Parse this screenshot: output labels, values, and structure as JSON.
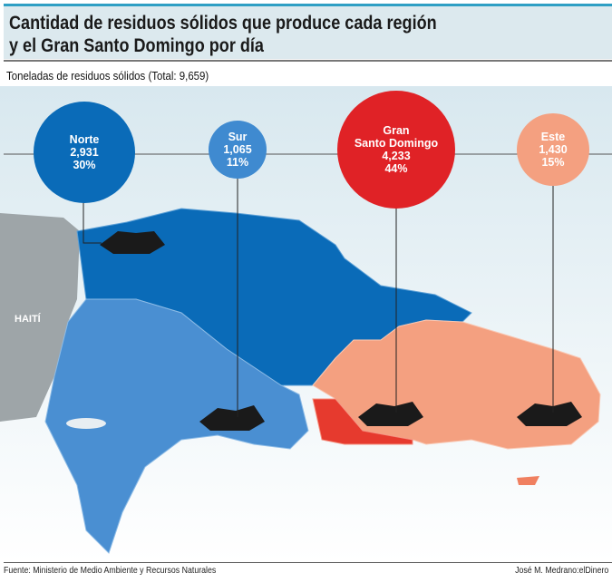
{
  "header": {
    "title": "Cantidad de residuos sólidos que produce cada región\ny el Gran Santo Domingo por día"
  },
  "subtitle": "Toneladas de residuos sólidos (Total: 9,659)",
  "map_labels": {
    "haiti": "HAITÍ"
  },
  "regions": [
    {
      "name": "Norte",
      "value": "2,931",
      "percent": "30%",
      "color": "#0a6bb8"
    },
    {
      "name": "Sur",
      "value": "1,065",
      "percent": "11%",
      "color": "#3f8ad0"
    },
    {
      "name": "Gran\nSanto Domingo",
      "value": "4,233",
      "percent": "44%",
      "color": "#e02226"
    },
    {
      "name": "Este",
      "value": "1,430",
      "percent": "15%",
      "color": "#f4a080"
    }
  ],
  "footer": {
    "source": "Fuente: Ministerio de Medio Ambiente y Recursos Naturales",
    "credit": "José M. Medrano:elDinero"
  }
}
